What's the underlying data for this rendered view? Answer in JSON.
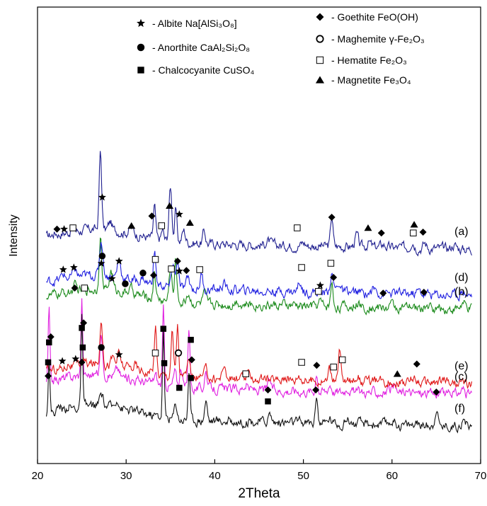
{
  "chart_data": {
    "type": "line",
    "title": "",
    "xlabel": "2Theta",
    "ylabel": "Intensity",
    "xlim": [
      20,
      70
    ],
    "xticks": [
      20,
      30,
      40,
      50,
      60,
      70
    ],
    "y_ticks_shown": false,
    "grid": false,
    "legend_position": "top",
    "legend": [
      {
        "symbol": "star",
        "label": "- Albite Na[AlSi₃O₈]"
      },
      {
        "symbol": "circle",
        "label": "- Anorthite CaAl₂Si₂O₈"
      },
      {
        "symbol": "square",
        "label": "- Chalcocyanite CuSO₄"
      },
      {
        "symbol": "diamond",
        "label": "- Goethite FeO(OH)"
      },
      {
        "symbol": "open-circle",
        "label": "- Maghemite γ-Fe₂O₃"
      },
      {
        "symbol": "open-square",
        "label": "- Hematite Fe₂O₃"
      },
      {
        "symbol": "triangle",
        "label": "- Magnetite Fe₃O₄"
      }
    ],
    "series": [
      {
        "name": "(a)",
        "color": "#1f1f8f",
        "baseline": 0.63,
        "peaks": [
          [
            22.0,
            0.02,
            0.3
          ],
          [
            24.0,
            0.03,
            0.3
          ],
          [
            27.1,
            0.78,
            0.22
          ],
          [
            28.2,
            0.08,
            0.3
          ],
          [
            30.6,
            0.06,
            0.4
          ],
          [
            33.2,
            0.32,
            0.2
          ],
          [
            34.1,
            0.1,
            0.2
          ],
          [
            35.0,
            0.55,
            0.25
          ],
          [
            35.6,
            0.32,
            0.2
          ],
          [
            36.5,
            0.12,
            0.3
          ],
          [
            38.8,
            0.12,
            0.25
          ],
          [
            46.0,
            0.04,
            0.4
          ],
          [
            50.0,
            0.03,
            0.4
          ],
          [
            53.2,
            0.3,
            0.22
          ],
          [
            56.0,
            0.12,
            0.3
          ],
          [
            57.4,
            0.05,
            0.3
          ],
          [
            59.0,
            0.03,
            0.4
          ],
          [
            62.3,
            0.08,
            0.3
          ],
          [
            63.7,
            0.05,
            0.3
          ],
          [
            67.0,
            0.04,
            0.4
          ]
        ],
        "markers": [
          {
            "type": "diamond",
            "x": 22.2,
            "h": 0.17
          },
          {
            "type": "star",
            "x": 23.0,
            "h": 0.17
          },
          {
            "type": "open-square",
            "x": 24.0,
            "h": 0.2
          },
          {
            "type": "star",
            "x": 27.3,
            "h": 0.92
          },
          {
            "type": "triangle",
            "x": 30.6,
            "h": 0.25
          },
          {
            "type": "diamond",
            "x": 32.9,
            "h": 0.48
          },
          {
            "type": "open-square",
            "x": 34.0,
            "h": 0.25
          },
          {
            "type": "triangle",
            "x": 34.9,
            "h": 0.72
          },
          {
            "type": "star",
            "x": 36.0,
            "h": 0.52
          },
          {
            "type": "triangle",
            "x": 37.2,
            "h": 0.32
          },
          {
            "type": "open-square",
            "x": 49.3,
            "h": 0.2
          },
          {
            "type": "diamond",
            "x": 53.2,
            "h": 0.45
          },
          {
            "type": "triangle",
            "x": 57.3,
            "h": 0.2
          },
          {
            "type": "diamond",
            "x": 58.8,
            "h": 0.08
          },
          {
            "type": "open-square",
            "x": 62.4,
            "h": 0.08
          },
          {
            "type": "triangle",
            "x": 62.5,
            "h": 0.28
          },
          {
            "type": "diamond",
            "x": 63.5,
            "h": 0.1
          }
        ]
      },
      {
        "name": "(b)",
        "color": "#1a8a1a",
        "baseline": 0.46,
        "peaks": [
          [
            24.2,
            0.05,
            0.3
          ],
          [
            27.1,
            0.55,
            0.22
          ],
          [
            28.3,
            0.2,
            0.3
          ],
          [
            30.5,
            0.05,
            0.4
          ],
          [
            33.2,
            0.3,
            0.2
          ],
          [
            35.0,
            0.35,
            0.25
          ],
          [
            35.6,
            0.42,
            0.2
          ],
          [
            37.0,
            0.1,
            0.3
          ],
          [
            38.8,
            0.1,
            0.25
          ],
          [
            42.5,
            0.04,
            0.4
          ],
          [
            51.9,
            0.05,
            0.3
          ],
          [
            53.2,
            0.22,
            0.22
          ],
          [
            56.0,
            0.04,
            0.4
          ],
          [
            60.0,
            0.03,
            0.4
          ],
          [
            64.0,
            0.03,
            0.4
          ],
          [
            68.0,
            0.05,
            0.4
          ]
        ],
        "markers": [
          {
            "type": "diamond",
            "x": 24.2,
            "h": 0.2
          },
          {
            "type": "open-square",
            "x": 25.3,
            "h": 0.2
          },
          {
            "type": "star",
            "x": 27.2,
            "h": 0.78
          },
          {
            "type": "star",
            "x": 28.4,
            "h": 0.42
          },
          {
            "type": "circle",
            "x": 29.9,
            "h": 0.3
          },
          {
            "type": "diamond",
            "x": 33.1,
            "h": 0.5
          },
          {
            "type": "open-square",
            "x": 35.1,
            "h": 0.65
          },
          {
            "type": "star",
            "x": 36.0,
            "h": 0.6
          },
          {
            "type": "star",
            "x": 51.9,
            "h": 0.26
          },
          {
            "type": "open-square",
            "x": 51.7,
            "h": 0.12
          },
          {
            "type": "diamond",
            "x": 53.4,
            "h": 0.45
          },
          {
            "type": "diamond",
            "x": 59.0,
            "h": 0.08
          },
          {
            "type": "diamond",
            "x": 63.6,
            "h": 0.1
          }
        ]
      },
      {
        "name": "(c)",
        "color": "#e020e0",
        "baseline": 0.22,
        "peaks": [
          [
            21.3,
            0.72,
            0.15
          ],
          [
            25.0,
            0.78,
            0.15
          ],
          [
            27.2,
            0.42,
            0.22
          ],
          [
            29.0,
            0.08,
            0.3
          ],
          [
            33.3,
            0.1,
            0.25
          ],
          [
            34.2,
            0.78,
            0.15
          ],
          [
            35.5,
            0.15,
            0.25
          ],
          [
            36.2,
            0.2,
            0.25
          ],
          [
            37.1,
            0.62,
            0.18
          ],
          [
            39.0,
            0.18,
            0.25
          ],
          [
            43.5,
            0.05,
            0.4
          ],
          [
            46.2,
            0.1,
            0.3
          ],
          [
            51.5,
            0.2,
            0.2
          ],
          [
            53.0,
            0.08,
            0.3
          ],
          [
            55.0,
            0.05,
            0.4
          ],
          [
            60.0,
            0.04,
            0.4
          ],
          [
            68.0,
            0.05,
            0.4
          ]
        ],
        "markers": [
          {
            "type": "diamond",
            "x": 21.5,
            "h": 1.05
          },
          {
            "type": "square",
            "x": 21.3,
            "h": 0.92
          },
          {
            "type": "diamond",
            "x": 25.2,
            "h": 1.38
          },
          {
            "type": "square",
            "x": 25.0,
            "h": 1.26
          },
          {
            "type": "square",
            "x": 34.2,
            "h": 1.24
          },
          {
            "type": "square",
            "x": 37.3,
            "h": 0.98
          },
          {
            "type": "open-square",
            "x": 43.5,
            "h": 0.18
          },
          {
            "type": "diamond",
            "x": 51.5,
            "h": 0.38
          },
          {
            "type": "open-square",
            "x": 53.4,
            "h": 0.34
          },
          {
            "type": "triangle",
            "x": 60.6,
            "h": 0.18
          }
        ]
      },
      {
        "name": "(d)",
        "color": "#2020e0",
        "baseline": 0.5,
        "peaks": [
          [
            22.9,
            0.05,
            0.3
          ],
          [
            24.2,
            0.08,
            0.3
          ],
          [
            27.2,
            0.35,
            0.3
          ],
          [
            29.2,
            0.18,
            0.3
          ],
          [
            31.9,
            0.05,
            0.3
          ],
          [
            33.2,
            0.33,
            0.22
          ],
          [
            35.3,
            0.25,
            0.25
          ],
          [
            35.8,
            0.3,
            0.2
          ],
          [
            37.0,
            0.1,
            0.3
          ],
          [
            38.5,
            0.15,
            0.25
          ],
          [
            41.0,
            0.06,
            0.4
          ],
          [
            49.6,
            0.1,
            0.3
          ],
          [
            53.2,
            0.18,
            0.3
          ],
          [
            54.0,
            0.1,
            0.3
          ],
          [
            58.0,
            0.04,
            0.4
          ],
          [
            63.0,
            0.03,
            0.4
          ],
          [
            68.0,
            0.04,
            0.4
          ]
        ],
        "markers": [
          {
            "type": "star",
            "x": 22.9,
            "h": 0.3
          },
          {
            "type": "star",
            "x": 24.1,
            "h": 0.35
          },
          {
            "type": "circle",
            "x": 27.3,
            "h": 0.62
          },
          {
            "type": "star",
            "x": 29.2,
            "h": 0.5
          },
          {
            "type": "circle",
            "x": 31.9,
            "h": 0.22
          },
          {
            "type": "open-square",
            "x": 33.3,
            "h": 0.54
          },
          {
            "type": "diamond",
            "x": 35.8,
            "h": 0.5
          },
          {
            "type": "diamond",
            "x": 36.8,
            "h": 0.28
          },
          {
            "type": "open-square",
            "x": 38.3,
            "h": 0.3
          },
          {
            "type": "open-square",
            "x": 49.8,
            "h": 0.35
          },
          {
            "type": "open-square",
            "x": 53.1,
            "h": 0.45
          }
        ]
      },
      {
        "name": "(e)",
        "color": "#e01818",
        "baseline": 0.25,
        "peaks": [
          [
            23.5,
            0.04,
            0.3
          ],
          [
            25.1,
            0.05,
            0.3
          ],
          [
            27.2,
            0.48,
            0.22
          ],
          [
            28.5,
            0.08,
            0.3
          ],
          [
            29.2,
            0.12,
            0.3
          ],
          [
            31.0,
            0.05,
            0.3
          ],
          [
            33.3,
            0.48,
            0.2
          ],
          [
            35.2,
            0.45,
            0.22
          ],
          [
            35.8,
            0.52,
            0.2
          ],
          [
            37.0,
            0.12,
            0.3
          ],
          [
            39.0,
            0.08,
            0.3
          ],
          [
            41.0,
            0.15,
            0.25
          ],
          [
            44.0,
            0.05,
            0.4
          ],
          [
            48.0,
            0.04,
            0.4
          ],
          [
            49.5,
            0.06,
            0.3
          ],
          [
            53.0,
            0.12,
            0.3
          ],
          [
            54.1,
            0.3,
            0.22
          ],
          [
            56.0,
            0.06,
            0.4
          ],
          [
            62.5,
            0.05,
            0.4
          ],
          [
            66.0,
            0.04,
            0.4
          ]
        ],
        "markers": [
          {
            "type": "star",
            "x": 22.8,
            "h": 0.23
          },
          {
            "type": "star",
            "x": 24.3,
            "h": 0.28
          },
          {
            "type": "circle",
            "x": 27.2,
            "h": 0.55
          },
          {
            "type": "star",
            "x": 29.2,
            "h": 0.38
          },
          {
            "type": "open-square",
            "x": 33.3,
            "h": 0.42
          },
          {
            "type": "open-circle",
            "x": 35.9,
            "h": 0.42
          },
          {
            "type": "diamond",
            "x": 37.4,
            "h": 0.26
          },
          {
            "type": "open-square",
            "x": 49.8,
            "h": 0.2
          },
          {
            "type": "open-square",
            "x": 54.4,
            "h": 0.26
          },
          {
            "type": "diamond",
            "x": 62.8,
            "h": 0.16
          }
        ]
      },
      {
        "name": "(f)",
        "color": "#111111",
        "baseline": 0.13,
        "peaks": [
          [
            21.3,
            0.55,
            0.15
          ],
          [
            22.5,
            0.05,
            0.3
          ],
          [
            23.5,
            0.04,
            0.3
          ],
          [
            25.0,
            0.9,
            0.15
          ],
          [
            27.2,
            0.12,
            0.3
          ],
          [
            29.0,
            0.1,
            0.3
          ],
          [
            34.2,
            0.9,
            0.15
          ],
          [
            35.6,
            0.15,
            0.25
          ],
          [
            37.1,
            0.5,
            0.18
          ],
          [
            39.0,
            0.2,
            0.25
          ],
          [
            46.2,
            0.08,
            0.3
          ],
          [
            51.5,
            0.3,
            0.2
          ],
          [
            53.0,
            0.05,
            0.3
          ],
          [
            55.0,
            0.05,
            0.4
          ],
          [
            60.0,
            0.04,
            0.4
          ],
          [
            65.0,
            0.18,
            0.25
          ],
          [
            68.0,
            0.05,
            0.4
          ]
        ],
        "markers": [
          {
            "type": "diamond",
            "x": 21.2,
            "h": 0.88
          },
          {
            "type": "square",
            "x": 21.2,
            "h": 1.2
          },
          {
            "type": "diamond",
            "x": 25.0,
            "h": 1.2
          },
          {
            "type": "square",
            "x": 25.1,
            "h": 1.55
          },
          {
            "type": "square",
            "x": 34.3,
            "h": 1.18
          },
          {
            "type": "square",
            "x": 36.0,
            "h": 0.6
          },
          {
            "type": "square",
            "x": 37.3,
            "h": 0.83
          },
          {
            "type": "diamond",
            "x": 46.0,
            "h": 0.55
          },
          {
            "type": "square",
            "x": 46.0,
            "h": 0.28
          },
          {
            "type": "diamond",
            "x": 51.4,
            "h": 0.55
          },
          {
            "type": "diamond",
            "x": 65.0,
            "h": 0.5
          }
        ]
      }
    ]
  }
}
